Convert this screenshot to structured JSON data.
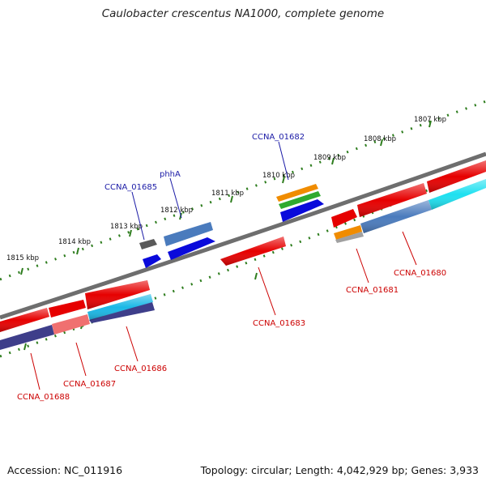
{
  "title": "Caulobacter crescentus NA1000, complete genome",
  "footer": {
    "accession": "Accession: NC_011916",
    "summary": "Topology: circular; Length: 4,042,929 bp; Genes: 3,933"
  },
  "colors": {
    "backbone": "#7a7a7a",
    "tick": "#2e7d1e",
    "label_forward": "#1a1aa6",
    "label_reverse": "#cc0000"
  },
  "scale_labels": [
    "1815 kbp",
    "1814 kbp",
    "1813 kbp",
    "1812 kbp",
    "1811 kbp",
    "1810 kbp",
    "1809 kbp",
    "1808 kbp",
    "1807 kbp"
  ],
  "gene_labels": {
    "forward": [
      "CCNA_01685",
      "phhA",
      "CCNA_01682"
    ],
    "reverse": [
      "CCNA_01688",
      "CCNA_01687",
      "CCNA_01686",
      "CCNA_01683",
      "CCNA_01681",
      "CCNA_01680"
    ]
  }
}
